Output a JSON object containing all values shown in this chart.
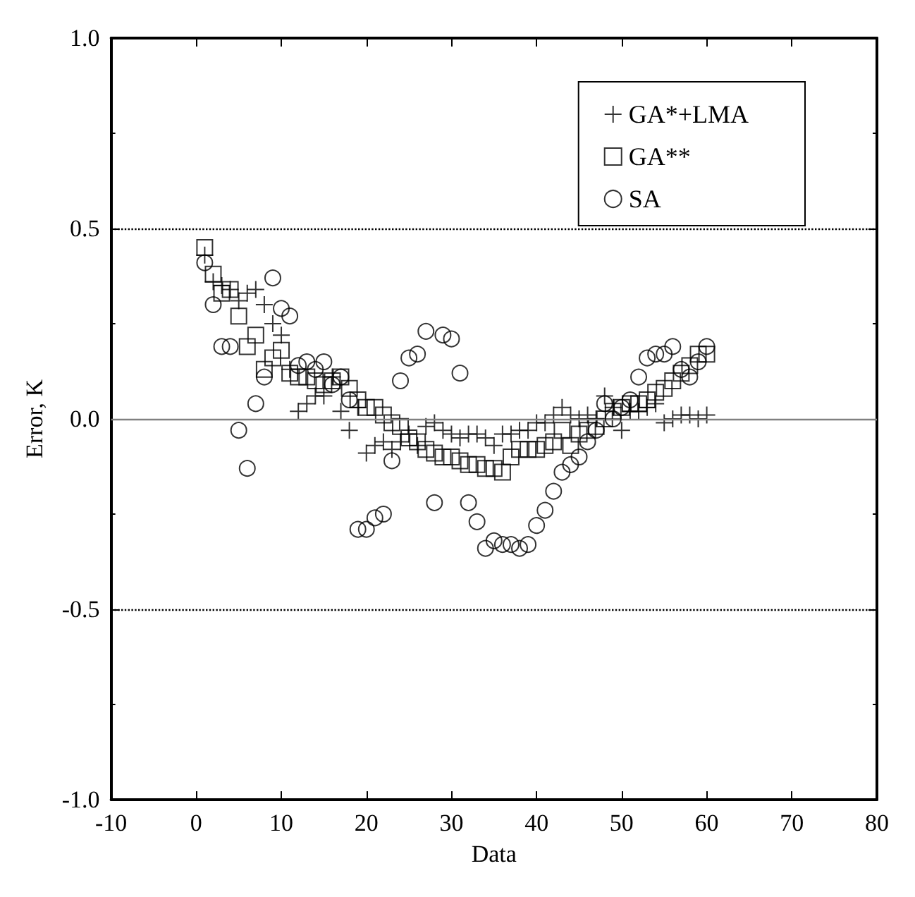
{
  "chart_data": {
    "type": "scatter",
    "xlabel": "Data",
    "ylabel": "Error, K",
    "xlim": [
      -10,
      80
    ],
    "xticks": [
      -10,
      0,
      10,
      20,
      30,
      40,
      50,
      60,
      70,
      80
    ],
    "ylim": [
      -1,
      1
    ],
    "yticks": [
      {
        "value": -1,
        "label": "-1.0"
      },
      {
        "value": -0.5,
        "label": "-0.5"
      },
      {
        "value": 0,
        "label": "0.0"
      },
      {
        "value": 0.5,
        "label": "0.5"
      },
      {
        "value": 1,
        "label": "1.0"
      }
    ],
    "grid": false,
    "legend": "top right",
    "x": [
      1,
      2,
      3,
      4,
      5,
      6,
      7,
      8,
      9,
      10,
      11,
      12,
      13,
      14,
      15,
      16,
      17,
      18,
      19,
      20,
      21,
      22,
      23,
      24,
      25,
      26,
      27,
      28,
      29,
      30,
      31,
      32,
      33,
      34,
      35,
      36,
      37,
      38,
      39,
      40,
      41,
      42,
      43,
      44,
      45,
      46,
      47,
      48,
      49,
      50,
      51,
      52,
      53,
      54,
      55,
      56,
      57,
      58,
      59,
      60
    ],
    "series": [
      {
        "name": "GA*+LMA",
        "color": "#000000",
        "marker": "cross",
        "values": [
          0.43,
          0.36,
          0.35,
          0.34,
          0.31,
          0.33,
          0.34,
          0.3,
          0.25,
          0.22,
          0.13,
          0.02,
          0.04,
          0.06,
          0.06,
          0.11,
          0.02,
          -0.03,
          0.03,
          -0.09,
          -0.07,
          -0.06,
          -0.08,
          -0.06,
          -0.04,
          -0.07,
          -0.02,
          -0.01,
          -0.03,
          -0.04,
          -0.05,
          -0.04,
          -0.04,
          -0.05,
          -0.07,
          -0.04,
          -0.04,
          -0.03,
          -0.03,
          -0.01,
          -0.01,
          0.01,
          0.03,
          0.01,
          0.0,
          0.01,
          0.0,
          0.06,
          0.03,
          -0.03,
          0.02,
          0.02,
          0.03,
          0.04,
          -0.01,
          0.0,
          0.01,
          0.01,
          0.0,
          0.01
        ]
      },
      {
        "name": "GA**",
        "color": "#000000",
        "marker": "square",
        "values": [
          0.45,
          0.38,
          0.33,
          0.34,
          0.27,
          0.19,
          0.22,
          0.13,
          0.16,
          0.18,
          0.12,
          0.11,
          0.11,
          0.1,
          0.09,
          0.1,
          0.11,
          0.08,
          0.05,
          0.03,
          0.03,
          0.01,
          -0.01,
          -0.02,
          -0.05,
          -0.06,
          -0.08,
          -0.09,
          -0.1,
          -0.1,
          -0.11,
          -0.12,
          -0.12,
          -0.13,
          -0.13,
          -0.14,
          -0.1,
          -0.08,
          -0.08,
          -0.08,
          -0.07,
          -0.06,
          -0.03,
          -0.07,
          -0.04,
          -0.03,
          -0.02,
          0.0,
          0.02,
          0.03,
          0.04,
          0.04,
          0.05,
          0.07,
          0.08,
          0.1,
          0.12,
          0.14,
          0.17,
          0.17
        ]
      },
      {
        "name": "SA",
        "color": "#000000",
        "marker": "circle",
        "values": [
          0.41,
          0.3,
          0.19,
          0.19,
          -0.03,
          -0.13,
          0.04,
          0.11,
          0.37,
          0.29,
          0.27,
          0.14,
          0.15,
          0.13,
          0.15,
          0.09,
          0.11,
          0.05,
          -0.29,
          -0.29,
          -0.26,
          -0.25,
          -0.11,
          0.1,
          0.16,
          0.17,
          0.23,
          -0.22,
          0.22,
          0.21,
          0.12,
          -0.22,
          -0.27,
          -0.34,
          -0.32,
          -0.33,
          -0.33,
          -0.34,
          -0.33,
          -0.28,
          -0.24,
          -0.19,
          -0.14,
          -0.12,
          -0.1,
          -0.06,
          -0.03,
          0.04,
          0.0,
          0.03,
          0.05,
          0.11,
          0.16,
          0.17,
          0.17,
          0.19,
          0.13,
          0.11,
          0.15,
          0.19
        ]
      }
    ],
    "ref_lines": [
      {
        "axis": "y",
        "value": 0.5,
        "line_style": "dotted",
        "color": "#000000"
      },
      {
        "axis": "y",
        "value": 0,
        "line_style": "solid",
        "color": "#808080"
      },
      {
        "axis": "y",
        "value": -0.5,
        "line_style": "dotted",
        "color": "#000000"
      }
    ]
  }
}
